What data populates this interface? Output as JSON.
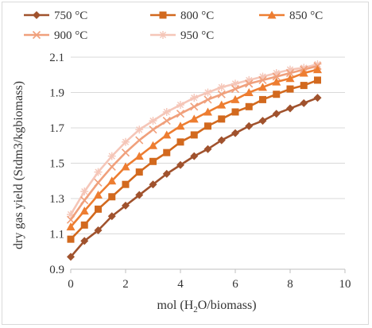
{
  "chart_data": {
    "type": "line",
    "title": "",
    "xlabel": "mol (H",
    "xlabel_sub": "2",
    "xlabel_tail": "O/biomass)",
    "ylabel": "dry gas yield (Stdm3/kgbiomass)",
    "xlim": [
      0,
      10
    ],
    "ylim": [
      0.9,
      2.1
    ],
    "x_ticks": [
      "0",
      "2",
      "4",
      "6",
      "8",
      "10"
    ],
    "y_ticks": [
      "0.9",
      "1.1",
      "1.3",
      "1.5",
      "1.7",
      "1.9",
      "2.1"
    ],
    "grid": "horizontal",
    "legend_position": "top",
    "x": [
      0,
      0.5,
      1,
      1.5,
      2,
      2.5,
      3,
      3.5,
      4,
      4.5,
      5,
      5.5,
      6,
      6.5,
      7,
      7.5,
      8,
      8.5,
      9
    ],
    "series": [
      {
        "name": "750 °C",
        "color": "#a0522d",
        "marker": "diamond",
        "values": [
          0.97,
          1.06,
          1.12,
          1.2,
          1.26,
          1.32,
          1.38,
          1.44,
          1.49,
          1.54,
          1.58,
          1.63,
          1.67,
          1.71,
          1.74,
          1.78,
          1.81,
          1.84,
          1.87
        ]
      },
      {
        "name": "800 °C",
        "color": "#d2691e",
        "marker": "square",
        "values": [
          1.07,
          1.15,
          1.24,
          1.31,
          1.38,
          1.45,
          1.51,
          1.56,
          1.62,
          1.66,
          1.71,
          1.75,
          1.79,
          1.82,
          1.86,
          1.89,
          1.92,
          1.94,
          1.97
        ]
      },
      {
        "name": "850 °C",
        "color": "#ed7d31",
        "marker": "triangle",
        "values": [
          1.14,
          1.23,
          1.32,
          1.4,
          1.48,
          1.54,
          1.6,
          1.66,
          1.71,
          1.75,
          1.79,
          1.83,
          1.86,
          1.9,
          1.93,
          1.96,
          1.98,
          2.01,
          2.03
        ]
      },
      {
        "name": "900 °C",
        "color": "#f0a07c",
        "marker": "x",
        "values": [
          1.18,
          1.29,
          1.39,
          1.48,
          1.56,
          1.63,
          1.69,
          1.74,
          1.78,
          1.82,
          1.86,
          1.89,
          1.92,
          1.95,
          1.97,
          1.99,
          2.01,
          2.03,
          2.05
        ]
      },
      {
        "name": "950 °C",
        "color": "#f5c6b8",
        "marker": "star",
        "values": [
          1.21,
          1.34,
          1.45,
          1.54,
          1.62,
          1.69,
          1.74,
          1.79,
          1.83,
          1.87,
          1.9,
          1.93,
          1.95,
          1.97,
          1.99,
          2.01,
          2.03,
          2.04,
          2.06
        ]
      }
    ]
  }
}
